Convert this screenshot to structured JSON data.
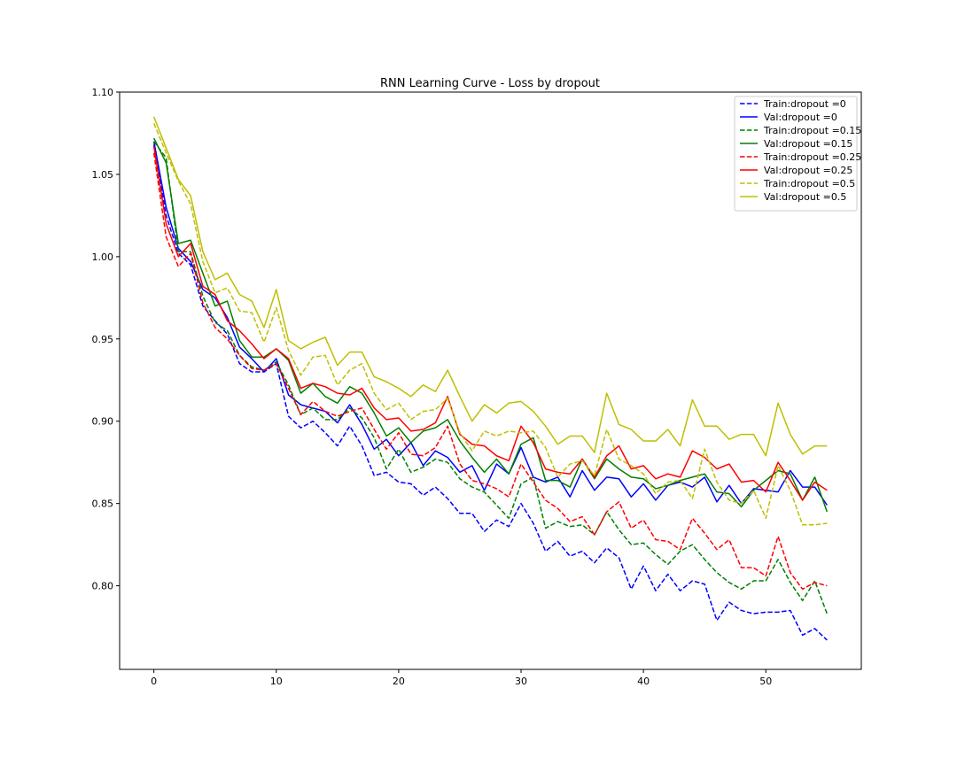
{
  "chart_data": {
    "type": "line",
    "title": "RNN Learning Curve - Loss by dropout",
    "xlabel": "",
    "ylabel": "",
    "xlim": [
      -2.8,
      57.8
    ],
    "ylim": [
      0.7492,
      1.1
    ],
    "xticks": [
      0,
      10,
      20,
      30,
      40,
      50
    ],
    "yticks": [
      0.8,
      0.85,
      0.9,
      0.95,
      1.0,
      1.05,
      1.1
    ],
    "ytick_labels": [
      "0.80",
      "0.85",
      "0.90",
      "0.95",
      "1.00",
      "1.05",
      "1.10"
    ],
    "grid": false,
    "legend_position": "top-right",
    "x": [
      0,
      1,
      2,
      3,
      4,
      5,
      6,
      7,
      8,
      9,
      10,
      11,
      12,
      13,
      14,
      15,
      16,
      17,
      18,
      19,
      20,
      21,
      22,
      23,
      24,
      25,
      26,
      27,
      28,
      29,
      30,
      31,
      32,
      33,
      34,
      35,
      36,
      37,
      38,
      39,
      40,
      41,
      42,
      43,
      44,
      45,
      46,
      47,
      48,
      49,
      50,
      51,
      52,
      53,
      54,
      55
    ],
    "series": [
      {
        "name": "Train:dropout =0",
        "color": "#0000ff",
        "linestyle": "dashed",
        "values": [
          1.068,
          1.025,
          1.002,
          0.995,
          0.97,
          0.961,
          0.953,
          0.935,
          0.93,
          0.93,
          0.935,
          0.903,
          0.896,
          0.9,
          0.893,
          0.885,
          0.897,
          0.885,
          0.867,
          0.869,
          0.863,
          0.862,
          0.855,
          0.86,
          0.853,
          0.844,
          0.844,
          0.833,
          0.84,
          0.836,
          0.85,
          0.838,
          0.821,
          0.827,
          0.818,
          0.821,
          0.814,
          0.823,
          0.817,
          0.798,
          0.812,
          0.797,
          0.807,
          0.797,
          0.803,
          0.801,
          0.779,
          0.79,
          0.785,
          0.783,
          0.784,
          0.784,
          0.785,
          0.77,
          0.774,
          0.767
        ]
      },
      {
        "name": "Val:dropout =0",
        "color": "#0000ff",
        "linestyle": "solid",
        "values": [
          1.07,
          1.03,
          1.005,
          0.997,
          0.98,
          0.975,
          0.963,
          0.945,
          0.938,
          0.93,
          0.938,
          0.916,
          0.91,
          0.908,
          0.906,
          0.899,
          0.91,
          0.898,
          0.883,
          0.889,
          0.879,
          0.887,
          0.873,
          0.882,
          0.878,
          0.869,
          0.873,
          0.858,
          0.874,
          0.868,
          0.884,
          0.866,
          0.863,
          0.866,
          0.854,
          0.87,
          0.858,
          0.866,
          0.865,
          0.854,
          0.862,
          0.852,
          0.861,
          0.863,
          0.86,
          0.866,
          0.851,
          0.861,
          0.85,
          0.859,
          0.858,
          0.857,
          0.87,
          0.86,
          0.86,
          0.849
        ]
      },
      {
        "name": "Train:dropout =0.15",
        "color": "#008000",
        "linestyle": "dashed",
        "values": [
          1.07,
          1.06,
          1.003,
          1.003,
          0.976,
          0.96,
          0.955,
          0.94,
          0.933,
          0.931,
          0.936,
          0.922,
          0.904,
          0.908,
          0.901,
          0.901,
          0.908,
          0.902,
          0.89,
          0.871,
          0.883,
          0.869,
          0.872,
          0.877,
          0.875,
          0.865,
          0.86,
          0.857,
          0.849,
          0.841,
          0.862,
          0.866,
          0.835,
          0.839,
          0.836,
          0.837,
          0.831,
          0.845,
          0.834,
          0.825,
          0.826,
          0.819,
          0.813,
          0.821,
          0.825,
          0.816,
          0.808,
          0.802,
          0.798,
          0.803,
          0.803,
          0.816,
          0.802,
          0.791,
          0.803,
          0.783
        ]
      },
      {
        "name": "Val:dropout =0.15",
        "color": "#008000",
        "linestyle": "solid",
        "values": [
          1.072,
          1.057,
          1.008,
          1.01,
          0.99,
          0.97,
          0.973,
          0.949,
          0.939,
          0.939,
          0.944,
          0.937,
          0.917,
          0.923,
          0.915,
          0.911,
          0.921,
          0.917,
          0.905,
          0.891,
          0.896,
          0.887,
          0.894,
          0.896,
          0.901,
          0.888,
          0.878,
          0.869,
          0.877,
          0.868,
          0.886,
          0.89,
          0.864,
          0.864,
          0.86,
          0.877,
          0.865,
          0.877,
          0.871,
          0.866,
          0.865,
          0.859,
          0.861,
          0.864,
          0.866,
          0.868,
          0.857,
          0.856,
          0.848,
          0.858,
          0.864,
          0.87,
          0.868,
          0.852,
          0.866,
          0.845
        ]
      },
      {
        "name": "Train:dropout =0.25",
        "color": "#ff0000",
        "linestyle": "dashed",
        "values": [
          1.063,
          1.012,
          0.994,
          1.002,
          0.972,
          0.957,
          0.95,
          0.94,
          0.932,
          0.931,
          0.935,
          0.92,
          0.904,
          0.912,
          0.906,
          0.903,
          0.906,
          0.908,
          0.895,
          0.883,
          0.893,
          0.88,
          0.879,
          0.884,
          0.897,
          0.874,
          0.864,
          0.862,
          0.859,
          0.854,
          0.874,
          0.863,
          0.852,
          0.847,
          0.839,
          0.842,
          0.831,
          0.845,
          0.851,
          0.835,
          0.84,
          0.828,
          0.827,
          0.822,
          0.841,
          0.832,
          0.822,
          0.828,
          0.811,
          0.811,
          0.806,
          0.83,
          0.808,
          0.798,
          0.802,
          0.8
        ]
      },
      {
        "name": "Val:dropout =0.25",
        "color": "#ff0000",
        "linestyle": "solid",
        "values": [
          1.067,
          1.02,
          1.0,
          1.008,
          0.982,
          0.977,
          0.961,
          0.955,
          0.947,
          0.938,
          0.944,
          0.938,
          0.92,
          0.923,
          0.921,
          0.917,
          0.916,
          0.92,
          0.908,
          0.901,
          0.902,
          0.894,
          0.895,
          0.899,
          0.915,
          0.892,
          0.886,
          0.885,
          0.879,
          0.876,
          0.897,
          0.887,
          0.871,
          0.869,
          0.868,
          0.877,
          0.866,
          0.879,
          0.885,
          0.871,
          0.873,
          0.865,
          0.868,
          0.866,
          0.882,
          0.878,
          0.871,
          0.874,
          0.863,
          0.864,
          0.857,
          0.875,
          0.864,
          0.852,
          0.863,
          0.858
        ]
      },
      {
        "name": "Train:dropout =0.5",
        "color": "#bfbf00",
        "linestyle": "dashed",
        "values": [
          1.081,
          1.063,
          1.046,
          1.032,
          0.997,
          0.978,
          0.981,
          0.967,
          0.966,
          0.948,
          0.969,
          0.943,
          0.928,
          0.939,
          0.94,
          0.922,
          0.931,
          0.935,
          0.917,
          0.907,
          0.911,
          0.901,
          0.906,
          0.907,
          0.914,
          0.893,
          0.882,
          0.894,
          0.891,
          0.894,
          0.893,
          0.894,
          0.884,
          0.866,
          0.874,
          0.876,
          0.867,
          0.895,
          0.877,
          0.873,
          0.868,
          0.856,
          0.863,
          0.864,
          0.853,
          0.883,
          0.863,
          0.852,
          0.85,
          0.858,
          0.841,
          0.873,
          0.858,
          0.837,
          0.837,
          0.838
        ]
      },
      {
        "name": "Val:dropout =0.5",
        "color": "#bfbf00",
        "linestyle": "solid",
        "values": [
          1.085,
          1.066,
          1.047,
          1.037,
          1.003,
          0.986,
          0.99,
          0.977,
          0.973,
          0.957,
          0.98,
          0.949,
          0.944,
          0.948,
          0.951,
          0.934,
          0.942,
          0.942,
          0.927,
          0.924,
          0.92,
          0.915,
          0.922,
          0.918,
          0.931,
          0.915,
          0.9,
          0.91,
          0.905,
          0.911,
          0.912,
          0.906,
          0.897,
          0.886,
          0.891,
          0.891,
          0.881,
          0.917,
          0.898,
          0.895,
          0.888,
          0.888,
          0.895,
          0.885,
          0.913,
          0.897,
          0.897,
          0.889,
          0.892,
          0.892,
          0.879,
          0.911,
          0.892,
          0.88,
          0.885,
          0.885
        ]
      }
    ]
  }
}
